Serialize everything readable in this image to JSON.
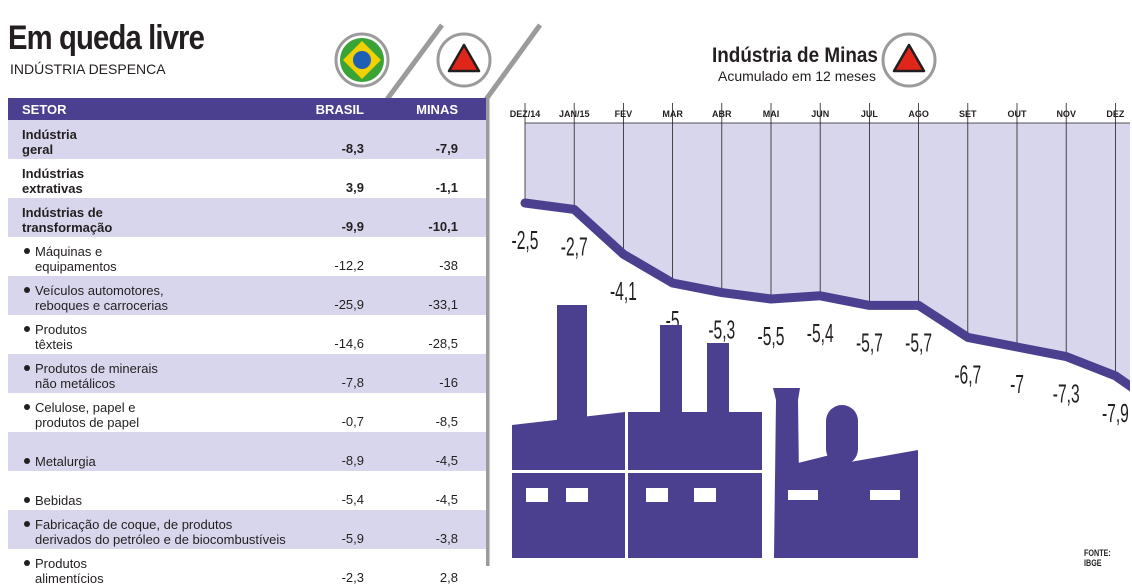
{
  "header": {
    "title": "Em queda livre",
    "subtitle": "INDÚSTRIA DESPENCA"
  },
  "table": {
    "columns": [
      "SETOR",
      "BRASIL",
      "MINAS"
    ],
    "rows": [
      {
        "sector": [
          "Indústria",
          "geral"
        ],
        "brasil": "-8,3",
        "minas": "-7,9",
        "bold": true,
        "bullet": false
      },
      {
        "sector": [
          "Indústrias",
          "extrativas"
        ],
        "brasil": "3,9",
        "minas": "-1,1",
        "bold": true,
        "bullet": false
      },
      {
        "sector": [
          "Indústrias de",
          "transformação"
        ],
        "brasil": "-9,9",
        "minas": "-10,1",
        "bold": true,
        "bullet": false
      },
      {
        "sector": [
          "Máquinas e",
          "equipamentos"
        ],
        "brasil": "-12,2",
        "minas": "-38",
        "bold": false,
        "bullet": true
      },
      {
        "sector": [
          "Veículos automotores,",
          "reboques e carrocerias"
        ],
        "brasil": "-25,9",
        "minas": "-33,1",
        "bold": false,
        "bullet": true
      },
      {
        "sector": [
          "Produtos",
          "têxteis"
        ],
        "brasil": "-14,6",
        "minas": "-28,5",
        "bold": false,
        "bullet": true
      },
      {
        "sector": [
          "Produtos de minerais",
          "não metálicos"
        ],
        "brasil": "-7,8",
        "minas": "-16",
        "bold": false,
        "bullet": true
      },
      {
        "sector": [
          "Celulose, papel e",
          "produtos de papel"
        ],
        "brasil": "-0,7",
        "minas": "-8,5",
        "bold": false,
        "bullet": true
      },
      {
        "sector": [
          "Metalurgia"
        ],
        "brasil": "-8,9",
        "minas": "-4,5",
        "bold": false,
        "bullet": true
      },
      {
        "sector": [
          "Bebidas"
        ],
        "brasil": "-5,4",
        "minas": "-4,5",
        "bold": false,
        "bullet": true
      },
      {
        "sector": [
          "Fabricação de coque, de produtos",
          "derivados do petróleo e de biocombustíveis"
        ],
        "brasil": "-5,9",
        "minas": "-3,8",
        "bold": false,
        "bullet": true
      },
      {
        "sector": [
          "Produtos",
          "alimentícios"
        ],
        "brasil": "-2,3",
        "minas": "2,8",
        "bold": false,
        "bullet": true
      }
    ]
  },
  "chart_data": {
    "type": "line",
    "title": "Indústria de Minas",
    "subtitle": "Acumulado em 12 meses",
    "categories": [
      "DEZ/14",
      "JAN/15",
      "FEV",
      "MAR",
      "ABR",
      "MAI",
      "JUN",
      "JUL",
      "AGO",
      "SET",
      "OUT",
      "NOV",
      "DEZ"
    ],
    "values": [
      -2.5,
      -2.7,
      -4.1,
      -5,
      -5.3,
      -5.5,
      -5.4,
      -5.7,
      -5.7,
      -6.7,
      -7,
      -7.3,
      -7.9
    ],
    "data_labels": [
      "-2,5",
      "-2,7",
      "-4,1",
      "-5",
      "-5,3",
      "-5,5",
      "-5,4",
      "-5,7",
      "-5,7",
      "-6,7",
      "-7",
      "-7,3",
      "-7,9"
    ],
    "ylim": [
      0,
      -8.5
    ],
    "grid": true,
    "colors": {
      "line": "#4b3f8f",
      "fill": "#d8d6ec",
      "grid": "#231f20"
    }
  },
  "colors": {
    "accent": "#4b3f8f",
    "row_shade": "#d8d6ec",
    "divider": "#9b9b9b",
    "minas_red": "#e0251b",
    "flag_green": "#3aa335",
    "flag_yellow": "#f2d100",
    "flag_blue": "#1f5fb6"
  },
  "icons": [
    "brazil-flag-icon",
    "minas-triangle-icon",
    "factory-icon"
  ],
  "source": "FONTE: IBGE"
}
